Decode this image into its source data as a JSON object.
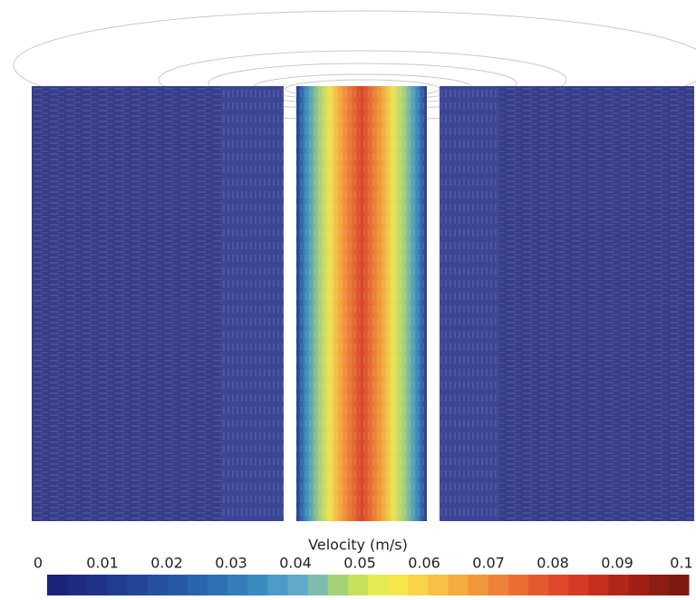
{
  "colorbar": {
    "title": "Velocity (m/s)",
    "range": [
      0,
      0.1
    ],
    "ticks": [
      0,
      0.01,
      0.02,
      0.03,
      0.04,
      0.05,
      0.06,
      0.07,
      0.08,
      0.09,
      0.1
    ],
    "colors": [
      "#1b237a",
      "#1d2a80",
      "#1f3288",
      "#213b90",
      "#234598",
      "#254f9f",
      "#2759a6",
      "#2a64ad",
      "#2d70b4",
      "#327dba",
      "#3a8bc0",
      "#4a9bc6",
      "#5eaac8",
      "#7dbcae",
      "#a3d27a",
      "#c8e05e",
      "#e6ea52",
      "#f5e64c",
      "#f7d447",
      "#f7c043",
      "#f5ab3e",
      "#f2963a",
      "#ee8236",
      "#ea6d32",
      "#e6592e",
      "#df482a",
      "#d43a24",
      "#c52f1e",
      "#b3261a",
      "#a02016",
      "#8e1c12",
      "#7d1a10"
    ]
  }
}
